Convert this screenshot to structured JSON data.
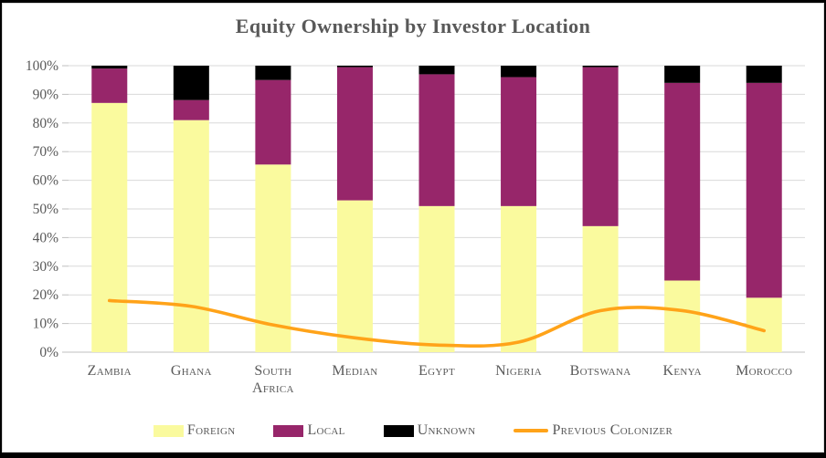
{
  "title": "Equity Ownership by Investor Location",
  "colors": {
    "foreign": "#FAFA9E",
    "local": "#97266A",
    "unknown": "#000000",
    "line": "#FFA319",
    "text": "#595959",
    "grid": "#D9D9D9",
    "axis": "#BFBFBF",
    "frame_border": "#000000",
    "background": "#FFFFFF"
  },
  "chart_data": {
    "type": "bar",
    "subtype": "stacked-100-percent-with-line-overlay",
    "title": "Equity Ownership by Investor Location",
    "categories": [
      "Zambia",
      "Ghana",
      "South Africa",
      "Median",
      "Egypt",
      "Nigeria",
      "Botswana",
      "Kenya",
      "Morocco"
    ],
    "series": [
      {
        "name": "Foreign",
        "type": "bar",
        "color": "#FAFA9E",
        "values": [
          87,
          81,
          65.5,
          53,
          51,
          51,
          44,
          25,
          19
        ]
      },
      {
        "name": "Local",
        "type": "bar",
        "color": "#97266A",
        "values": [
          12,
          7,
          29.5,
          46.5,
          46,
          45,
          55.5,
          69,
          75
        ]
      },
      {
        "name": "Unknown",
        "type": "bar",
        "color": "#000000",
        "values": [
          1,
          12,
          5,
          0.5,
          3,
          4,
          0.5,
          6,
          6
        ]
      },
      {
        "name": "Previous Colonizer",
        "type": "line",
        "color": "#FFA319",
        "smoothed": true,
        "values": [
          18,
          16,
          9.5,
          5,
          2.5,
          3.5,
          14.5,
          14.5,
          7.5
        ]
      }
    ],
    "xlabel": "",
    "ylabel": "",
    "ylim": [
      0,
      100
    ],
    "yticks": [
      0,
      10,
      20,
      30,
      40,
      50,
      60,
      70,
      80,
      90,
      100
    ],
    "ytick_suffix": "%",
    "grid": true,
    "legend_position": "bottom"
  },
  "legend": {
    "items": [
      {
        "label": "Foreign",
        "marker": "square",
        "color": "#FAFA9E"
      },
      {
        "label": "Local",
        "marker": "square",
        "color": "#97266A"
      },
      {
        "label": "Unknown",
        "marker": "square",
        "color": "#000000"
      },
      {
        "label": "Previous Colonizer",
        "marker": "line",
        "color": "#FFA319"
      }
    ]
  }
}
